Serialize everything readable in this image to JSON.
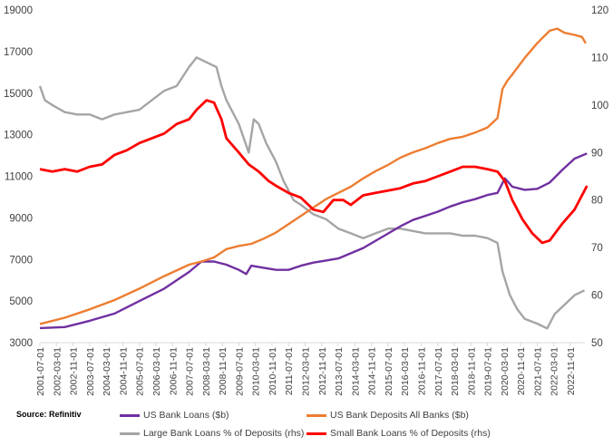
{
  "source": "Source: Refinitiv",
  "colors": {
    "loans": "#7030A0",
    "deposits": "#ED7D31",
    "large_ratio": "#A5A5A5",
    "small_ratio": "#FF0000"
  },
  "chart_data": {
    "type": "line",
    "x_start": "2001-07",
    "x_end": "2023-06",
    "x_tick_labels": [
      "2001-07-01",
      "2002-03-01",
      "2002-11-01",
      "2003-07-01",
      "2004-03-01",
      "2004-11-01",
      "2005-07-01",
      "2006-03-01",
      "2006-11-01",
      "2007-07-01",
      "2008-03-01",
      "2008-11-01",
      "2009-07-01",
      "2010-03-01",
      "2010-11-01",
      "2011-07-01",
      "2012-03-01",
      "2012-11-01",
      "2013-07-01",
      "2014-03-01",
      "2014-11-01",
      "2015-07-01",
      "2016-03-01",
      "2016-11-01",
      "2017-07-01",
      "2018-03-01",
      "2018-11-01",
      "2019-07-01",
      "2020-03-01",
      "2020-11-01",
      "2021-07-01",
      "2022-03-01",
      "2022-11-01"
    ],
    "y_left": {
      "min": 3000,
      "max": 19000,
      "ticks": [
        "3000",
        "5000",
        "7000",
        "9000",
        "11000",
        "13000",
        "15000",
        "17000",
        "19000"
      ]
    },
    "y_right": {
      "min": 50,
      "max": 120,
      "ticks": [
        "50",
        "60",
        "70",
        "80",
        "90",
        "100",
        "110",
        "120"
      ]
    },
    "series": [
      {
        "name": "US Bank Loans ($b)",
        "axis": "left",
        "points": [
          [
            2001.5,
            3700
          ],
          [
            2002.5,
            3750
          ],
          [
            2003.5,
            4050
          ],
          [
            2004.5,
            4400
          ],
          [
            2005.5,
            5000
          ],
          [
            2006.5,
            5600
          ],
          [
            2007.5,
            6400
          ],
          [
            2008.0,
            6900
          ],
          [
            2008.5,
            6900
          ],
          [
            2009.0,
            6750
          ],
          [
            2009.5,
            6500
          ],
          [
            2009.8,
            6300
          ],
          [
            2010.0,
            6700
          ],
          [
            2010.5,
            6600
          ],
          [
            2011.0,
            6500
          ],
          [
            2011.5,
            6500
          ],
          [
            2012.0,
            6700
          ],
          [
            2012.5,
            6850
          ],
          [
            2013.0,
            6950
          ],
          [
            2013.5,
            7050
          ],
          [
            2014.0,
            7300
          ],
          [
            2014.5,
            7550
          ],
          [
            2015.0,
            7900
          ],
          [
            2015.5,
            8250
          ],
          [
            2016.0,
            8600
          ],
          [
            2016.5,
            8900
          ],
          [
            2017.0,
            9100
          ],
          [
            2017.5,
            9300
          ],
          [
            2018.0,
            9550
          ],
          [
            2018.5,
            9750
          ],
          [
            2019.0,
            9900
          ],
          [
            2019.5,
            10100
          ],
          [
            2019.9,
            10200
          ],
          [
            2020.2,
            10900
          ],
          [
            2020.5,
            10500
          ],
          [
            2021.0,
            10350
          ],
          [
            2021.5,
            10400
          ],
          [
            2022.0,
            10700
          ],
          [
            2022.5,
            11300
          ],
          [
            2023.0,
            11850
          ],
          [
            2023.5,
            12100
          ]
        ]
      },
      {
        "name": "US Bank Deposits All Banks ($b)",
        "axis": "left",
        "points": [
          [
            2001.5,
            3900
          ],
          [
            2002.5,
            4200
          ],
          [
            2003.5,
            4600
          ],
          [
            2004.5,
            5050
          ],
          [
            2005.5,
            5600
          ],
          [
            2006.5,
            6200
          ],
          [
            2007.5,
            6750
          ],
          [
            2008.0,
            6900
          ],
          [
            2008.5,
            7100
          ],
          [
            2009.0,
            7500
          ],
          [
            2009.5,
            7650
          ],
          [
            2010.0,
            7750
          ],
          [
            2010.5,
            8000
          ],
          [
            2011.0,
            8300
          ],
          [
            2011.5,
            8700
          ],
          [
            2012.0,
            9100
          ],
          [
            2012.5,
            9500
          ],
          [
            2013.0,
            9900
          ],
          [
            2013.5,
            10200
          ],
          [
            2014.0,
            10500
          ],
          [
            2014.5,
            10900
          ],
          [
            2015.0,
            11250
          ],
          [
            2015.5,
            11550
          ],
          [
            2016.0,
            11900
          ],
          [
            2016.5,
            12150
          ],
          [
            2017.0,
            12350
          ],
          [
            2017.5,
            12600
          ],
          [
            2018.0,
            12800
          ],
          [
            2018.5,
            12900
          ],
          [
            2019.0,
            13100
          ],
          [
            2019.5,
            13350
          ],
          [
            2019.9,
            13800
          ],
          [
            2020.1,
            15200
          ],
          [
            2020.3,
            15600
          ],
          [
            2020.5,
            15900
          ],
          [
            2021.0,
            16700
          ],
          [
            2021.5,
            17400
          ],
          [
            2022.0,
            18000
          ],
          [
            2022.3,
            18100
          ],
          [
            2022.6,
            17900
          ],
          [
            2023.0,
            17800
          ],
          [
            2023.3,
            17700
          ],
          [
            2023.45,
            17400
          ]
        ]
      },
      {
        "name": "Large Bank Loans % of Deposits (rhs)",
        "axis": "right",
        "points": [
          [
            2001.5,
            104
          ],
          [
            2001.7,
            101
          ],
          [
            2002.0,
            100
          ],
          [
            2002.5,
            98.5
          ],
          [
            2003.0,
            98
          ],
          [
            2003.5,
            98
          ],
          [
            2004.0,
            97
          ],
          [
            2004.5,
            98
          ],
          [
            2005.0,
            98.5
          ],
          [
            2005.5,
            99
          ],
          [
            2006.0,
            101
          ],
          [
            2006.5,
            103
          ],
          [
            2007.0,
            104
          ],
          [
            2007.5,
            108
          ],
          [
            2007.8,
            110
          ],
          [
            2008.2,
            109
          ],
          [
            2008.6,
            108
          ],
          [
            2008.8,
            104
          ],
          [
            2009.0,
            101
          ],
          [
            2009.5,
            96
          ],
          [
            2009.9,
            90
          ],
          [
            2010.1,
            97
          ],
          [
            2010.3,
            96
          ],
          [
            2010.6,
            92
          ],
          [
            2011.0,
            88
          ],
          [
            2011.3,
            84
          ],
          [
            2011.7,
            80
          ],
          [
            2012.0,
            79
          ],
          [
            2012.5,
            77
          ],
          [
            2013.0,
            76
          ],
          [
            2013.5,
            74
          ],
          [
            2014.0,
            73
          ],
          [
            2014.5,
            72
          ],
          [
            2015.0,
            73
          ],
          [
            2015.5,
            74
          ],
          [
            2016.0,
            74
          ],
          [
            2016.5,
            73.5
          ],
          [
            2017.0,
            73
          ],
          [
            2017.5,
            73
          ],
          [
            2018.0,
            73
          ],
          [
            2018.5,
            72.5
          ],
          [
            2019.0,
            72.5
          ],
          [
            2019.5,
            72
          ],
          [
            2019.9,
            71
          ],
          [
            2020.1,
            65
          ],
          [
            2020.4,
            60
          ],
          [
            2020.7,
            57
          ],
          [
            2021.0,
            55
          ],
          [
            2021.5,
            54
          ],
          [
            2021.9,
            53
          ],
          [
            2022.2,
            56
          ],
          [
            2022.6,
            58
          ],
          [
            2023.0,
            60
          ],
          [
            2023.4,
            61
          ]
        ]
      },
      {
        "name": "Small Bank Loans % of Deposits (rhs)",
        "axis": "right",
        "points": [
          [
            2001.5,
            86.5
          ],
          [
            2002.0,
            86
          ],
          [
            2002.5,
            86.5
          ],
          [
            2003.0,
            86
          ],
          [
            2003.5,
            87
          ],
          [
            2004.0,
            87.5
          ],
          [
            2004.5,
            89.5
          ],
          [
            2005.0,
            90.5
          ],
          [
            2005.5,
            92
          ],
          [
            2006.0,
            93
          ],
          [
            2006.5,
            94
          ],
          [
            2007.0,
            96
          ],
          [
            2007.5,
            97
          ],
          [
            2007.8,
            99
          ],
          [
            2008.2,
            101
          ],
          [
            2008.5,
            100.5
          ],
          [
            2008.8,
            97
          ],
          [
            2009.0,
            93
          ],
          [
            2009.5,
            90
          ],
          [
            2009.9,
            87.5
          ],
          [
            2010.3,
            86
          ],
          [
            2010.7,
            84
          ],
          [
            2011.0,
            83
          ],
          [
            2011.5,
            81.5
          ],
          [
            2012.0,
            80.5
          ],
          [
            2012.5,
            78
          ],
          [
            2012.9,
            77.5
          ],
          [
            2013.3,
            80
          ],
          [
            2013.7,
            80
          ],
          [
            2014.0,
            79
          ],
          [
            2014.5,
            81
          ],
          [
            2015.0,
            81.5
          ],
          [
            2015.5,
            82
          ],
          [
            2016.0,
            82.5
          ],
          [
            2016.5,
            83.5
          ],
          [
            2017.0,
            84
          ],
          [
            2017.5,
            85
          ],
          [
            2018.0,
            86
          ],
          [
            2018.5,
            87
          ],
          [
            2019.0,
            87
          ],
          [
            2019.5,
            86.5
          ],
          [
            2019.9,
            86
          ],
          [
            2020.2,
            84
          ],
          [
            2020.5,
            80
          ],
          [
            2020.9,
            76
          ],
          [
            2021.3,
            73
          ],
          [
            2021.7,
            71
          ],
          [
            2022.0,
            71.5
          ],
          [
            2022.5,
            75
          ],
          [
            2023.0,
            78
          ],
          [
            2023.3,
            81
          ],
          [
            2023.5,
            83
          ]
        ]
      }
    ]
  }
}
